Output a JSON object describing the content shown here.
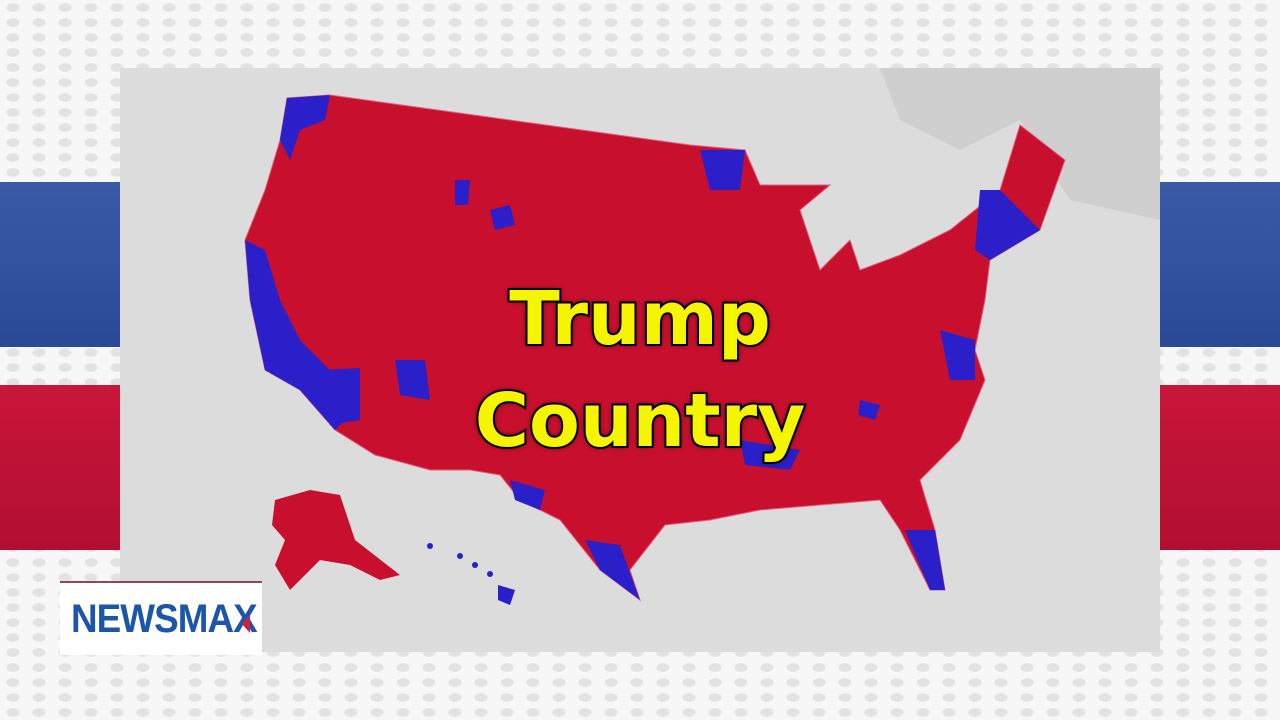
{
  "caption": {
    "line1": "Trump",
    "line2": "Country"
  },
  "logo": {
    "text": "NEWSMAX"
  },
  "map": {
    "republican_color": "#c8102e",
    "democrat_color": "#2a1fc8",
    "background_color": "#dcdcdc"
  }
}
